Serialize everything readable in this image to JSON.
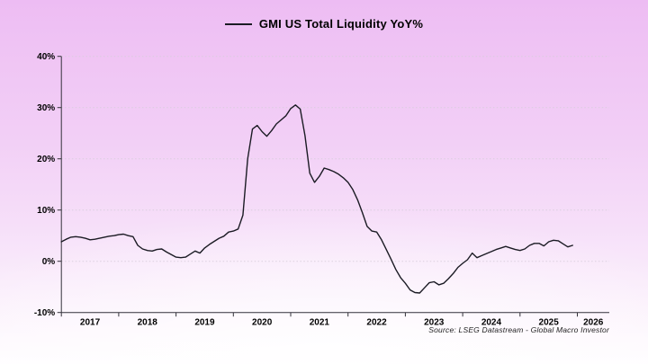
{
  "header": {
    "legend_label": "GMI US Total Liquidity YoY%"
  },
  "footer": {
    "source": "Source: LSEG Datastream - Global Macro Investor"
  },
  "colors": {
    "background_top": "#edbcf3",
    "background_bottom": "#ffffff",
    "line": "#1b1b24",
    "grid": "#d8cddb",
    "axis": "#33313a",
    "text": "#000000"
  },
  "chart_data": {
    "type": "line",
    "title": "GMI US Total Liquidity YoY%",
    "ylabel": "",
    "xlabel": "",
    "ylim": [
      -10,
      40
    ],
    "xlim": [
      2017,
      2026.6
    ],
    "grid": "dotted-horizontal",
    "legend_position": "top-center",
    "y_axis": {
      "ticks": [
        40,
        30,
        20,
        10,
        0,
        -10
      ],
      "labels": [
        "40%",
        "30%",
        "20%",
        "10%",
        "0%",
        "-10%"
      ]
    },
    "x_axis": {
      "ticks": [
        2017,
        2018,
        2019,
        2020,
        2021,
        2022,
        2023,
        2024,
        2025,
        2026
      ],
      "labels": [
        "2017",
        "2018",
        "2019",
        "2020",
        "2021",
        "2022",
        "2023",
        "2024",
        "2025",
        "2026"
      ]
    },
    "series": [
      {
        "name": "GMI US Total Liquidity YoY%",
        "color": "#1b1b24",
        "unit": "%",
        "resolution": "monthly",
        "monthly": {
          "2017": [
            3.8,
            4.3,
            4.7,
            4.8,
            4.7,
            4.5,
            4.2,
            4.3,
            4.5,
            4.7,
            4.9,
            5.0
          ],
          "2018": [
            5.2,
            5.3,
            5.0,
            4.8,
            3.1,
            2.4,
            2.1,
            2.0,
            2.3,
            2.4,
            1.8,
            1.3
          ],
          "2019": [
            0.8,
            0.7,
            0.8,
            1.4,
            2.0,
            1.6,
            2.6,
            3.3,
            3.9,
            4.5,
            4.9,
            5.7
          ],
          "2020": [
            5.9,
            6.3,
            9.0,
            20.0,
            25.8,
            26.5,
            25.3,
            24.4,
            25.5,
            26.8,
            27.6,
            28.4
          ],
          "2021": [
            29.8,
            30.5,
            29.7,
            24.5,
            17.2,
            15.4,
            16.6,
            18.2,
            17.9,
            17.5,
            17.0,
            16.3
          ],
          "2022": [
            15.4,
            14.0,
            12.0,
            9.5,
            6.8,
            5.9,
            5.7,
            4.2,
            2.3,
            0.4,
            -1.6,
            -3.2
          ],
          "2023": [
            -4.3,
            -5.6,
            -6.1,
            -6.2,
            -5.2,
            -4.2,
            -4.0,
            -4.6,
            -4.3,
            -3.4,
            -2.4,
            -1.2
          ],
          "2024": [
            -0.4,
            0.3,
            1.6,
            0.7,
            1.1,
            1.5,
            1.9,
            2.3,
            2.6,
            2.9,
            2.6,
            2.3
          ],
          "2025": [
            2.1,
            2.4,
            3.1,
            3.5,
            3.5,
            3.0,
            3.8,
            4.1,
            4.0,
            3.4,
            2.8,
            3.1
          ]
        }
      }
    ]
  }
}
